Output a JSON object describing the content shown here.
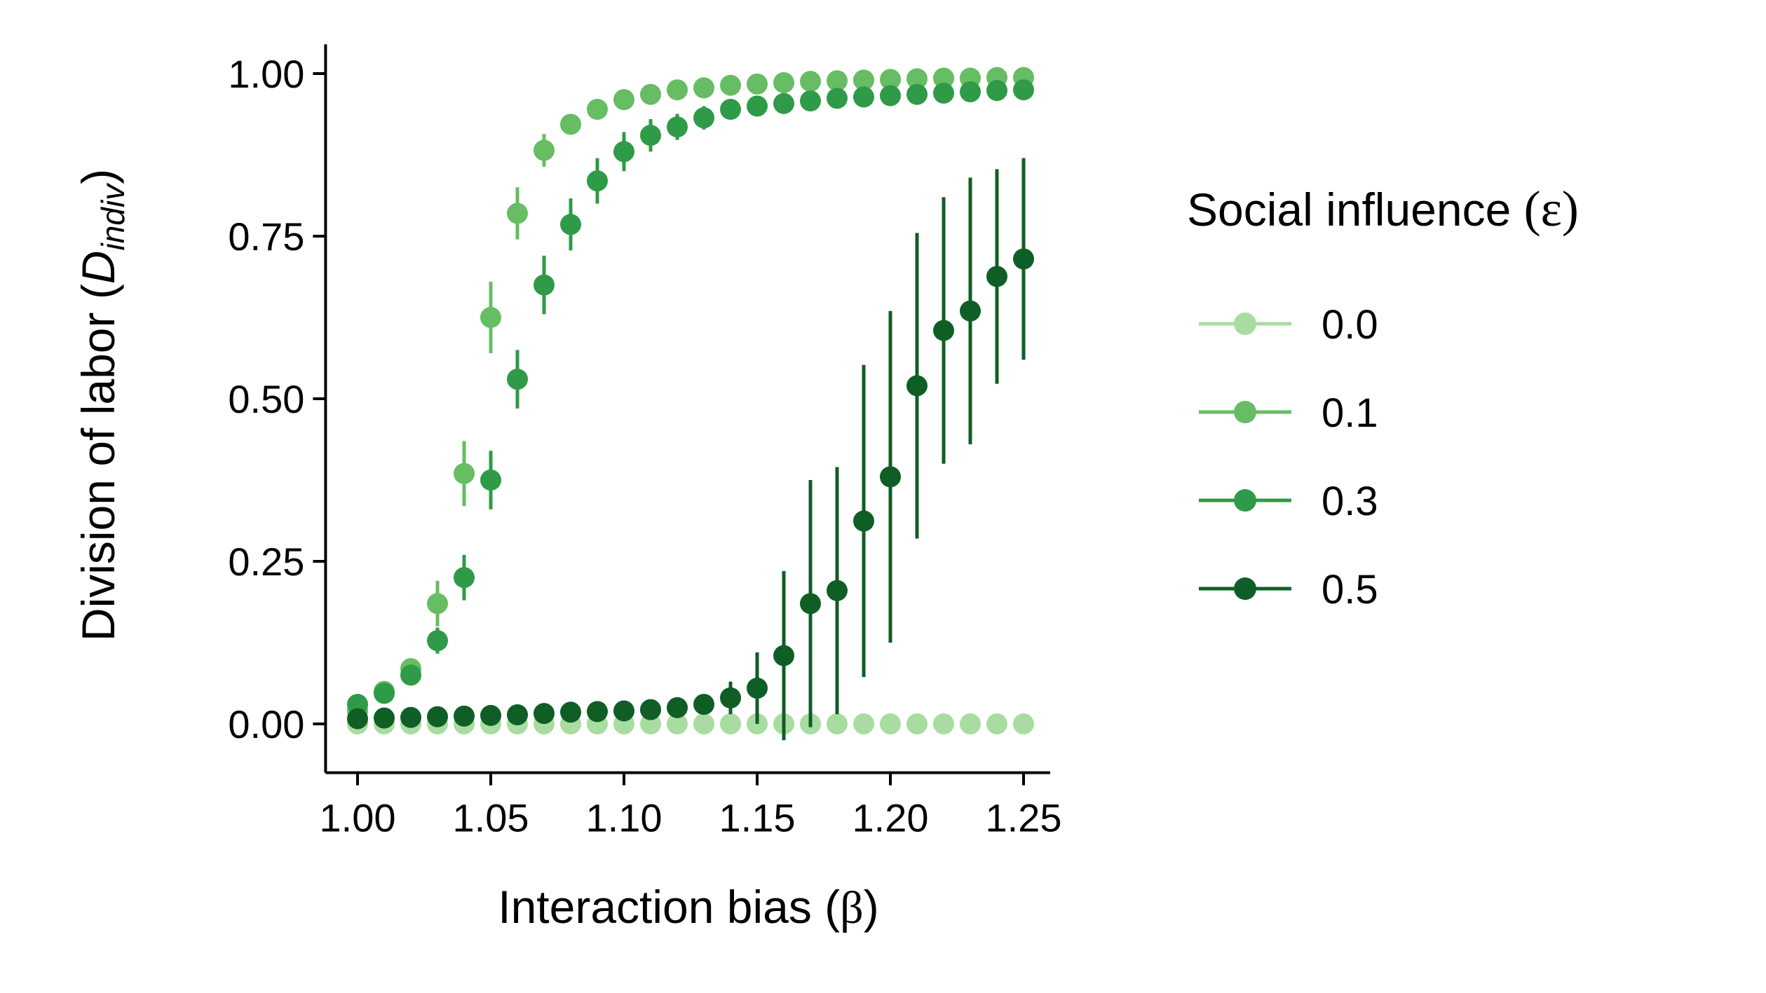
{
  "chart_data": {
    "type": "scatter",
    "title": "",
    "xlabel": {
      "prefix": "Interaction bias (",
      "symbol": "β",
      "suffix": ")"
    },
    "ylabel": {
      "prefix": "Division of labor (",
      "var": "D",
      "sub": "indiv",
      "suffix": ")"
    },
    "xlim": [
      0.988,
      1.26
    ],
    "ylim": [
      -0.075,
      1.045
    ],
    "xticks": [
      1.0,
      1.05,
      1.1,
      1.15,
      1.2,
      1.25
    ],
    "xtick_labels": [
      "1.00",
      "1.05",
      "1.10",
      "1.15",
      "1.20",
      "1.25"
    ],
    "yticks": [
      0.0,
      0.25,
      0.5,
      0.75,
      1.0
    ],
    "ytick_labels": [
      "0.00",
      "0.25",
      "0.50",
      "0.75",
      "1.00"
    ],
    "grid": false,
    "legend": {
      "placement": "right",
      "title_prefix": "Social influence ",
      "title_symbol": "(ε)"
    },
    "x": [
      1.0,
      1.01,
      1.02,
      1.03,
      1.04,
      1.05,
      1.06,
      1.07,
      1.08,
      1.09,
      1.1,
      1.11,
      1.12,
      1.13,
      1.14,
      1.15,
      1.16,
      1.17,
      1.18,
      1.19,
      1.2,
      1.21,
      1.22,
      1.23,
      1.24,
      1.25
    ],
    "series": [
      {
        "name": "0.0",
        "color": "#a8dca1",
        "values": [
          0.0,
          0.0,
          0.0,
          0.0,
          0.0,
          0.0,
          0.0,
          0.0,
          0.0,
          0.0,
          0.0,
          0.0,
          0.0,
          0.0,
          0.0,
          0.0,
          0.0,
          0.0,
          0.0,
          0.0,
          0.0,
          0.0,
          0.0,
          0.0,
          0.0,
          0.0
        ],
        "errors": [
          0,
          0,
          0,
          0,
          0,
          0,
          0,
          0,
          0,
          0,
          0,
          0,
          0,
          0,
          0,
          0,
          0,
          0,
          0,
          0,
          0,
          0,
          0,
          0,
          0,
          0
        ]
      },
      {
        "name": "0.1",
        "color": "#66bd63",
        "values": [
          0.02,
          0.05,
          0.085,
          0.185,
          0.385,
          0.625,
          0.785,
          0.882,
          0.922,
          0.945,
          0.96,
          0.968,
          0.975,
          0.978,
          0.982,
          0.984,
          0.986,
          0.988,
          0.989,
          0.99,
          0.991,
          0.992,
          0.993,
          0.993,
          0.994,
          0.994
        ],
        "errors": [
          0.005,
          0.01,
          0.015,
          0.035,
          0.05,
          0.055,
          0.04,
          0.025,
          0.015,
          0.01,
          0.008,
          0.006,
          0.005,
          0.005,
          0.004,
          0.004,
          0.003,
          0.003,
          0.003,
          0.003,
          0.002,
          0.002,
          0.002,
          0.002,
          0.002,
          0.002
        ]
      },
      {
        "name": "0.3",
        "color": "#2f9a47",
        "values": [
          0.03,
          0.047,
          0.075,
          0.128,
          0.225,
          0.375,
          0.53,
          0.675,
          0.768,
          0.835,
          0.88,
          0.905,
          0.918,
          0.932,
          0.945,
          0.95,
          0.954,
          0.958,
          0.962,
          0.964,
          0.966,
          0.968,
          0.97,
          0.972,
          0.974,
          0.975
        ],
        "errors": [
          0.005,
          0.008,
          0.012,
          0.02,
          0.035,
          0.045,
          0.045,
          0.045,
          0.04,
          0.035,
          0.03,
          0.025,
          0.02,
          0.018,
          0.015,
          0.012,
          0.012,
          0.01,
          0.01,
          0.008,
          0.008,
          0.007,
          0.007,
          0.006,
          0.006,
          0.006
        ]
      },
      {
        "name": "0.5",
        "color": "#0f5e26",
        "values": [
          0.008,
          0.009,
          0.01,
          0.011,
          0.012,
          0.013,
          0.014,
          0.016,
          0.018,
          0.019,
          0.02,
          0.022,
          0.025,
          0.03,
          0.04,
          0.055,
          0.105,
          0.185,
          0.205,
          0.312,
          0.38,
          0.52,
          0.605,
          0.635,
          0.688,
          0.715
        ],
        "errors": [
          0.004,
          0.004,
          0.004,
          0.004,
          0.005,
          0.005,
          0.006,
          0.006,
          0.007,
          0.008,
          0.009,
          0.01,
          0.012,
          0.015,
          0.025,
          0.055,
          0.13,
          0.19,
          0.19,
          0.24,
          0.255,
          0.235,
          0.205,
          0.205,
          0.165,
          0.155
        ]
      }
    ]
  }
}
